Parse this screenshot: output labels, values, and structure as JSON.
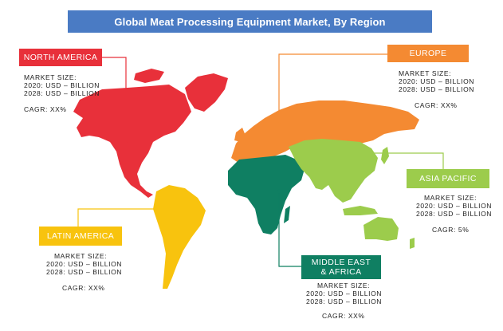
{
  "title": "Global Meat Processing Equipment Market, By Region",
  "colors": {
    "title_bg": "#4a7bc4",
    "north_america": "#e8303a",
    "europe": "#f48a32",
    "asia_pacific": "#9ccc4c",
    "latin_america": "#f8c30e",
    "middle_east_africa": "#0f7f62"
  },
  "regions": {
    "north_america": {
      "label": "NORTH AMERICA",
      "market_size": "MARKET SIZE:",
      "y2020": "2020: USD – BILLION",
      "y2028": "2028: USD – BILLION",
      "cagr": "CAGR: XX%"
    },
    "europe": {
      "label": "EUROPE",
      "market_size": "MARKET SIZE:",
      "y2020": "2020: USD – BILLION",
      "y2028": "2028: USD – BILLION",
      "cagr": "CAGR: XX%"
    },
    "asia_pacific": {
      "label": "ASIA PACIFIC",
      "market_size": "MARKET SIZE:",
      "y2020": "2020: USD – BILLION",
      "y2028": "2028: USD – BILLION",
      "cagr": "CAGR: 5%"
    },
    "latin_america": {
      "label": "LATIN AMERICA",
      "market_size": "MARKET SIZE:",
      "y2020": "2020: USD – BILLION",
      "y2028": "2028: USD – BILLION",
      "cagr": "CAGR: XX%"
    },
    "middle_east_africa": {
      "label": "MIDDLE EAST & AFRICA",
      "label_line1": "MIDDLE EAST",
      "label_line2": "& AFRICA",
      "market_size": "MARKET SIZE:",
      "y2020": "2020: USD – BILLION",
      "y2028": "2028: USD – BILLION",
      "cagr": "CAGR: XX%"
    }
  }
}
